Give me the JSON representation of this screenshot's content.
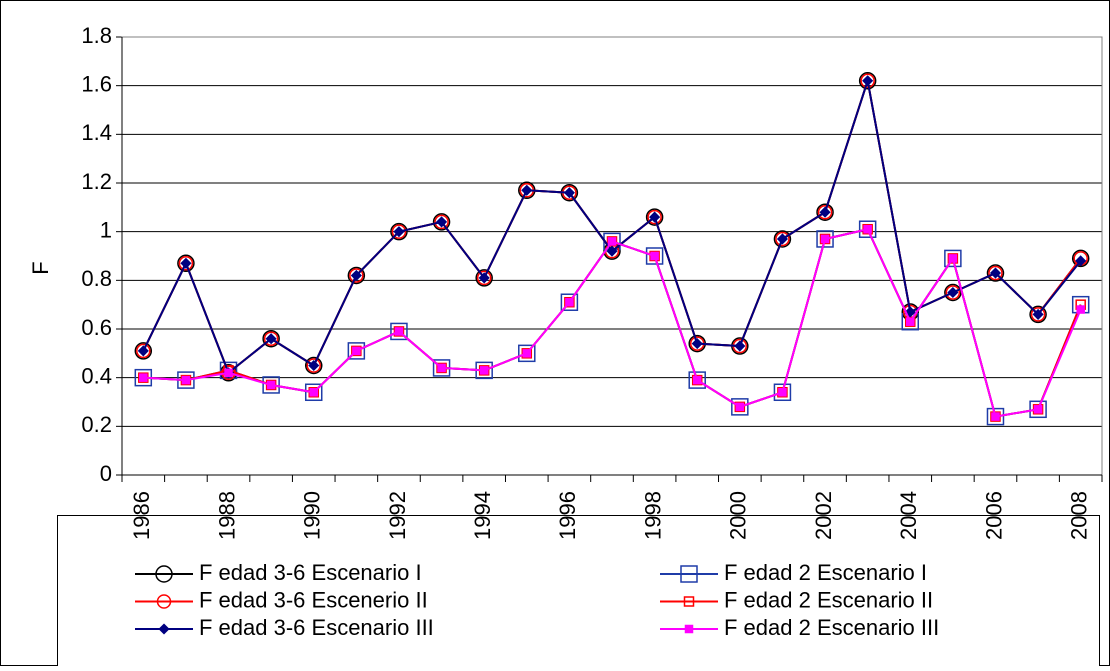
{
  "chart_data": {
    "type": "line",
    "y_label": "F",
    "categories": [
      1986,
      null,
      1988,
      null,
      1990,
      null,
      1992,
      null,
      1994,
      null,
      1996,
      null,
      1998,
      null,
      2000,
      null,
      2002,
      null,
      2004,
      null,
      2006,
      null,
      2008
    ],
    "ylim": [
      0,
      1.8
    ],
    "yticks": [
      0,
      0.2,
      0.4,
      0.6,
      0.8,
      1,
      1.2,
      1.4,
      1.6,
      1.8
    ],
    "grid": true,
    "series": [
      {
        "name": "F edad 3-6 Escenario I",
        "color": "#000000",
        "marker": "circle",
        "filled": false,
        "marker_size": 8,
        "values": [
          0.51,
          0.87,
          0.42,
          0.56,
          0.45,
          0.82,
          1.0,
          1.04,
          0.81,
          1.17,
          1.16,
          0.92,
          1.06,
          0.54,
          0.53,
          0.97,
          1.08,
          1.62,
          0.67,
          0.75,
          0.83,
          0.66,
          0.89
        ]
      },
      {
        "name": "F edad 2 Escenario I",
        "color": "#1f3ca8",
        "marker": "square",
        "filled": false,
        "marker_size": 8,
        "values": [
          0.4,
          0.39,
          0.43,
          0.37,
          0.34,
          0.51,
          0.59,
          0.44,
          0.43,
          0.5,
          0.71,
          0.96,
          0.9,
          0.39,
          0.28,
          0.34,
          0.97,
          1.01,
          0.63,
          0.89,
          0.24,
          0.27,
          0.7
        ]
      },
      {
        "name": "F edad 3-6 Escenerio II",
        "color": "#ff0000",
        "marker": "circle",
        "filled": false,
        "marker_size": 6.5,
        "values": [
          0.51,
          0.87,
          0.42,
          0.56,
          0.45,
          0.82,
          1.0,
          1.04,
          0.81,
          1.17,
          1.16,
          0.92,
          1.06,
          0.54,
          0.53,
          0.97,
          1.08,
          1.62,
          0.67,
          0.75,
          0.83,
          0.66,
          0.89
        ]
      },
      {
        "name": "F edad 2 Escenario II",
        "color": "#ff0000",
        "marker": "square",
        "filled": false,
        "marker_size": 4.5,
        "values": [
          0.4,
          0.39,
          0.43,
          0.37,
          0.34,
          0.51,
          0.59,
          0.44,
          0.43,
          0.5,
          0.71,
          0.96,
          0.9,
          0.39,
          0.28,
          0.34,
          0.97,
          1.01,
          0.63,
          0.89,
          0.24,
          0.27,
          0.7
        ]
      },
      {
        "name": "F edad 3-6 Escenario III",
        "color": "#000080",
        "marker": "diamond",
        "filled": true,
        "marker_size": 4.5,
        "values": [
          0.51,
          0.87,
          0.42,
          0.56,
          0.45,
          0.82,
          1.0,
          1.04,
          0.81,
          1.17,
          1.16,
          0.92,
          1.06,
          0.54,
          0.53,
          0.97,
          1.08,
          1.62,
          0.67,
          0.75,
          0.83,
          0.66,
          0.88
        ]
      },
      {
        "name": "F edad 2 Escenario III",
        "color": "#ff00ff",
        "marker": "square",
        "filled": true,
        "marker_size": 3.5,
        "values": [
          0.4,
          0.39,
          0.42,
          0.37,
          0.34,
          0.51,
          0.59,
          0.44,
          0.43,
          0.5,
          0.71,
          0.96,
          0.9,
          0.39,
          0.28,
          0.34,
          0.97,
          1.01,
          0.63,
          0.89,
          0.24,
          0.27,
          0.68
        ]
      }
    ]
  }
}
